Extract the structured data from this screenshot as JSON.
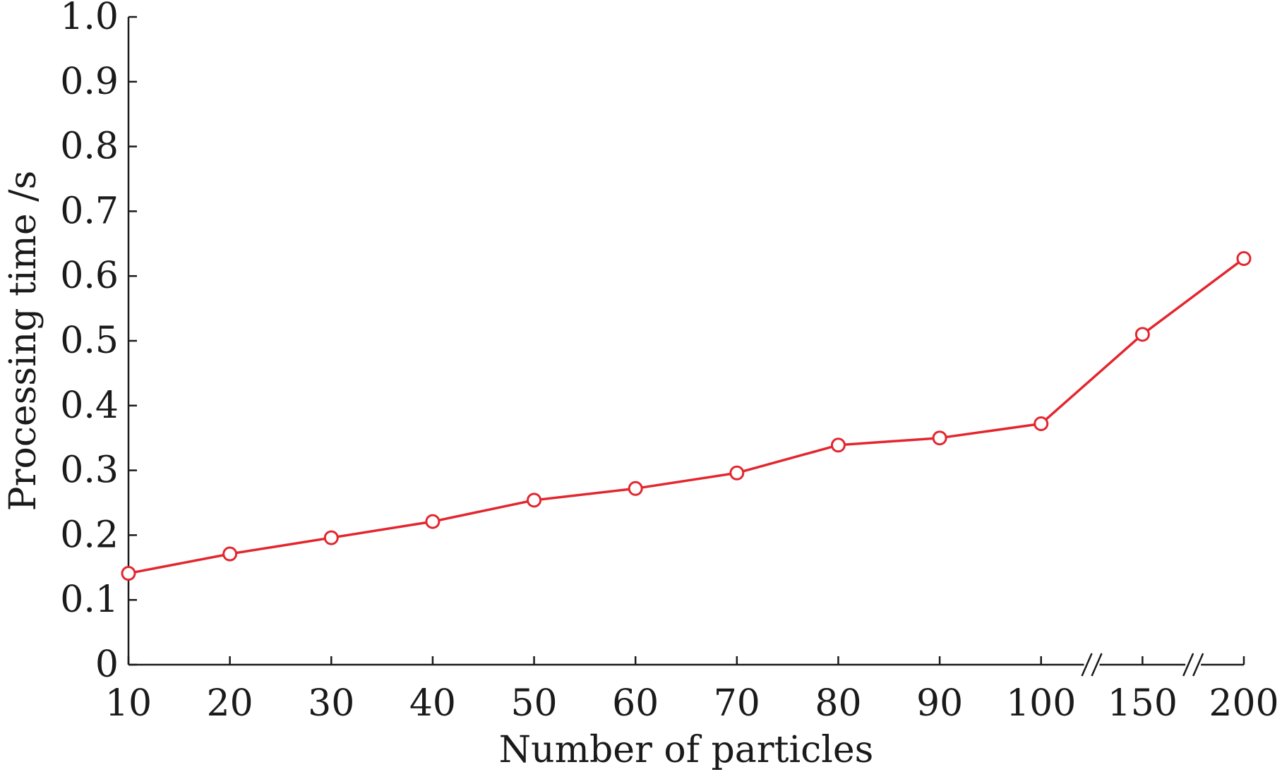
{
  "chart_data": {
    "type": "line",
    "xlabel": "Number of particles",
    "ylabel": "Processing time /s",
    "categories": [
      "10",
      "20",
      "30",
      "40",
      "50",
      "60",
      "70",
      "80",
      "90",
      "100",
      "150",
      "200"
    ],
    "axis_breaks_after": [
      "100",
      "150"
    ],
    "ylim": [
      0,
      1.0
    ],
    "yticks": [
      "0",
      "0.1",
      "0.2",
      "0.3",
      "0.4",
      "0.5",
      "0.6",
      "0.7",
      "0.8",
      "0.9",
      "1.0"
    ],
    "grid": false,
    "series": [
      {
        "color": "#e3262e",
        "marker": "open-circle",
        "values": [
          0.141,
          0.171,
          0.196,
          0.221,
          0.254,
          0.272,
          0.296,
          0.339,
          0.35,
          0.372,
          0.51,
          0.627
        ]
      }
    ]
  }
}
